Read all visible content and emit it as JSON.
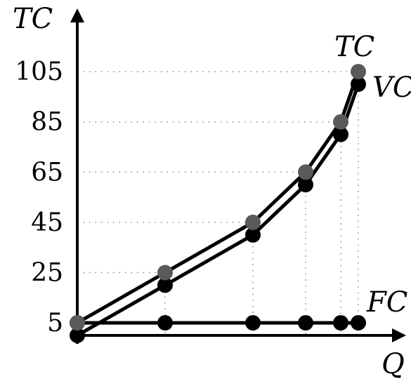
{
  "chart_data": {
    "type": "line",
    "xlabel": "Q",
    "ylabel": "TC",
    "x": [
      0,
      1,
      2,
      2.6,
      3,
      3.2
    ],
    "series": [
      {
        "name": "TC",
        "values": [
          5,
          25,
          45,
          65,
          85,
          105
        ],
        "color": "#5a5a5a"
      },
      {
        "name": "VC",
        "values": [
          0,
          20,
          40,
          60,
          80,
          100
        ],
        "color": "#000000"
      },
      {
        "name": "FC",
        "values": [
          5,
          5,
          5,
          5,
          5,
          5
        ],
        "color": "#000000"
      }
    ],
    "y_ticks": [
      5,
      25,
      45,
      65,
      85,
      105
    ],
    "y_tick_labels": [
      "5",
      "25",
      "45",
      "65",
      "85",
      "105"
    ],
    "ylim": [
      0,
      125
    ],
    "grid": "dotted guides to TC points",
    "colors": {
      "axis": "#000000",
      "grid": "#888888"
    }
  }
}
